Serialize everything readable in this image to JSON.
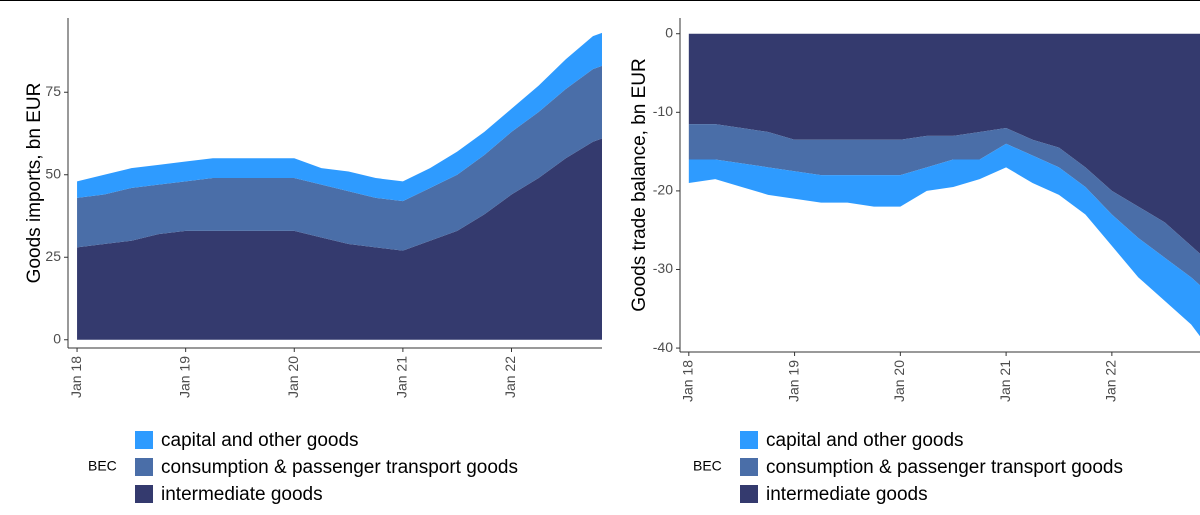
{
  "chart_data": [
    {
      "type": "area",
      "stacked": true,
      "y_label": "Goods imports, bn EUR",
      "x": [
        "2018-01",
        "2018-04",
        "2018-07",
        "2018-10",
        "2019-01",
        "2019-04",
        "2019-07",
        "2019-10",
        "2020-01",
        "2020-04",
        "2020-07",
        "2020-10",
        "2021-01",
        "2021-04",
        "2021-07",
        "2021-10",
        "2022-01",
        "2022-04",
        "2022-07",
        "2022-10",
        "2022-11"
      ],
      "xlim": [
        "2017-12",
        "2022-11"
      ],
      "xticks": [
        {
          "value": "2018-01",
          "label": "Jan 18"
        },
        {
          "value": "2019-01",
          "label": "Jan 19"
        },
        {
          "value": "2020-01",
          "label": "Jan 20"
        },
        {
          "value": "2021-01",
          "label": "Jan 21"
        },
        {
          "value": "2022-01",
          "label": "Jan 22"
        }
      ],
      "ylim": [
        -2.5,
        97.5
      ],
      "yticks": [
        0,
        25,
        50,
        75
      ],
      "legend_title": "BEC",
      "series": [
        {
          "name": "intermediate goods",
          "color": "#343a6e",
          "values": [
            28,
            29,
            30,
            32,
            33,
            33,
            33,
            33,
            33,
            31,
            29,
            28,
            27,
            30,
            33,
            38,
            44,
            49,
            55,
            60,
            61
          ]
        },
        {
          "name": "consumption & passenger transport goods",
          "color": "#4a6ea8",
          "values": [
            15,
            15,
            16,
            15,
            15,
            16,
            16,
            16,
            16,
            16,
            16,
            15,
            15,
            16,
            17,
            18,
            19,
            20,
            21,
            22,
            22
          ]
        },
        {
          "name": "capital and other goods",
          "color": "#2e9bff",
          "values": [
            5,
            6,
            6,
            6,
            6,
            6,
            6,
            6,
            6,
            5,
            6,
            6,
            6,
            6,
            7,
            7,
            7,
            8,
            9,
            10,
            10
          ]
        }
      ]
    },
    {
      "type": "area",
      "stacked": true,
      "y_label": "Goods trade balance, bn EUR",
      "x": [
        "2018-01",
        "2018-04",
        "2018-07",
        "2018-10",
        "2019-01",
        "2019-04",
        "2019-07",
        "2019-10",
        "2020-01",
        "2020-04",
        "2020-07",
        "2020-10",
        "2021-01",
        "2021-04",
        "2021-07",
        "2021-10",
        "2022-01",
        "2022-04",
        "2022-07",
        "2022-10",
        "2022-11"
      ],
      "xlim": [
        "2017-12",
        "2022-11"
      ],
      "xticks": [
        {
          "value": "2018-01",
          "label": "Jan 18"
        },
        {
          "value": "2019-01",
          "label": "Jan 19"
        },
        {
          "value": "2020-01",
          "label": "Jan 20"
        },
        {
          "value": "2021-01",
          "label": "Jan 21"
        },
        {
          "value": "2022-01",
          "label": "Jan 22"
        }
      ],
      "ylim": [
        -40.5,
        2
      ],
      "yticks": [
        0,
        -10,
        -20,
        -30,
        -40
      ],
      "legend_title": "BEC",
      "series": [
        {
          "name": "intermediate goods",
          "color": "#343a6e",
          "values": [
            -11.5,
            -11.5,
            -12,
            -12.5,
            -13.5,
            -13.5,
            -13.5,
            -13.5,
            -13.5,
            -13,
            -13,
            -12.5,
            -12,
            -13.5,
            -14.5,
            -17,
            -20,
            -22,
            -24,
            -27,
            -28
          ]
        },
        {
          "name": "consumption & passenger transport goods",
          "color": "#4a6ea8",
          "values": [
            -4.5,
            -4.5,
            -4.5,
            -4.5,
            -4,
            -4.5,
            -4.5,
            -4.5,
            -4.5,
            -4,
            -3,
            -3.5,
            -2,
            -2,
            -2.5,
            -2.5,
            -3,
            -4,
            -4.5,
            -4,
            -4
          ]
        },
        {
          "name": "capital and other goods",
          "color": "#2e9bff",
          "values": [
            -3,
            -2.5,
            -3,
            -3.5,
            -3.5,
            -3.5,
            -3.5,
            -4,
            -4,
            -3,
            -3.5,
            -2.5,
            -3,
            -3.5,
            -3.5,
            -3.5,
            -4,
            -5,
            -5.5,
            -6,
            -6.5
          ]
        }
      ]
    }
  ]
}
